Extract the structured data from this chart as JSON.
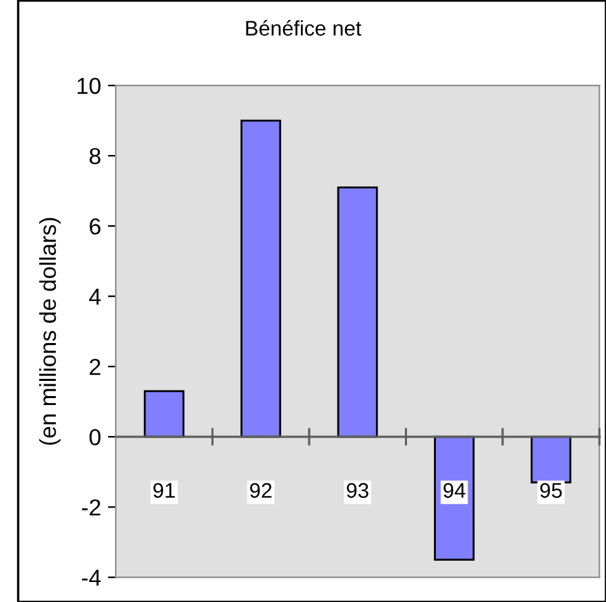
{
  "chart_data": {
    "type": "bar",
    "title": "Bénéfice net",
    "ylabel": "(en millions de dollars)",
    "categories": [
      "91",
      "92",
      "93",
      "94",
      "95"
    ],
    "values": [
      1.3,
      9.0,
      7.1,
      -3.5,
      -1.3
    ],
    "color": "#8080ff",
    "ylim": [
      -4,
      10
    ],
    "yticks": [
      -4,
      -2,
      0,
      2,
      4,
      6,
      8,
      10
    ],
    "grid": false
  }
}
